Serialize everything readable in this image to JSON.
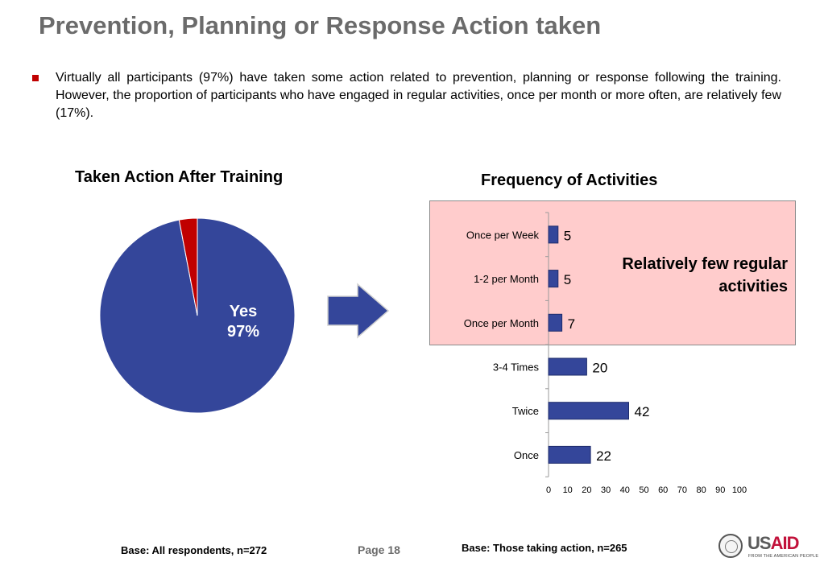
{
  "page": {
    "title": "Prevention, Planning or Response Action taken",
    "bullet": "Virtually all participants (97%) have taken some action related to prevention, planning or response following the training. However, the proportion of participants who have engaged in regular activities, once per month or more often, are relatively few (17%).",
    "callout": "Relatively few regular activities",
    "base_left": "Base: All respondents, n=272",
    "page_number": "Page 18",
    "base_right": "Base: Those taking action, n=265",
    "logo": {
      "word_us": "US",
      "word_aid": "AID",
      "tagline": "FROM THE AMERICAN PEOPLE"
    }
  },
  "colors": {
    "title_gray": "#6b6b6b",
    "bullet_red": "#c00000",
    "bar_blue": "#34469a",
    "pie_blue": "#34469a",
    "pie_red": "#c00000",
    "highlight_pink": "#ffcccc"
  },
  "chart_data": [
    {
      "type": "pie",
      "title": "Taken Action After Training",
      "slices": [
        {
          "label": "Yes",
          "value": 97,
          "display": "97%",
          "color": "#34469a"
        },
        {
          "label": "",
          "value": 3,
          "color": "#c00000"
        }
      ]
    },
    {
      "type": "bar",
      "orientation": "horizontal",
      "title": "Frequency of Activities",
      "categories": [
        "Once per Week",
        "1-2 per Month",
        "Once per Month",
        "3-4 Times",
        "Twice",
        "Once"
      ],
      "values": [
        5,
        5,
        7,
        20,
        42,
        22
      ],
      "xlim": [
        0,
        100
      ],
      "xticks": [
        0,
        10,
        20,
        30,
        40,
        50,
        60,
        70,
        80,
        90,
        100
      ],
      "highlighted_categories": [
        "Once per Week",
        "1-2 per Month",
        "Once per Month"
      ],
      "grid": false
    }
  ]
}
